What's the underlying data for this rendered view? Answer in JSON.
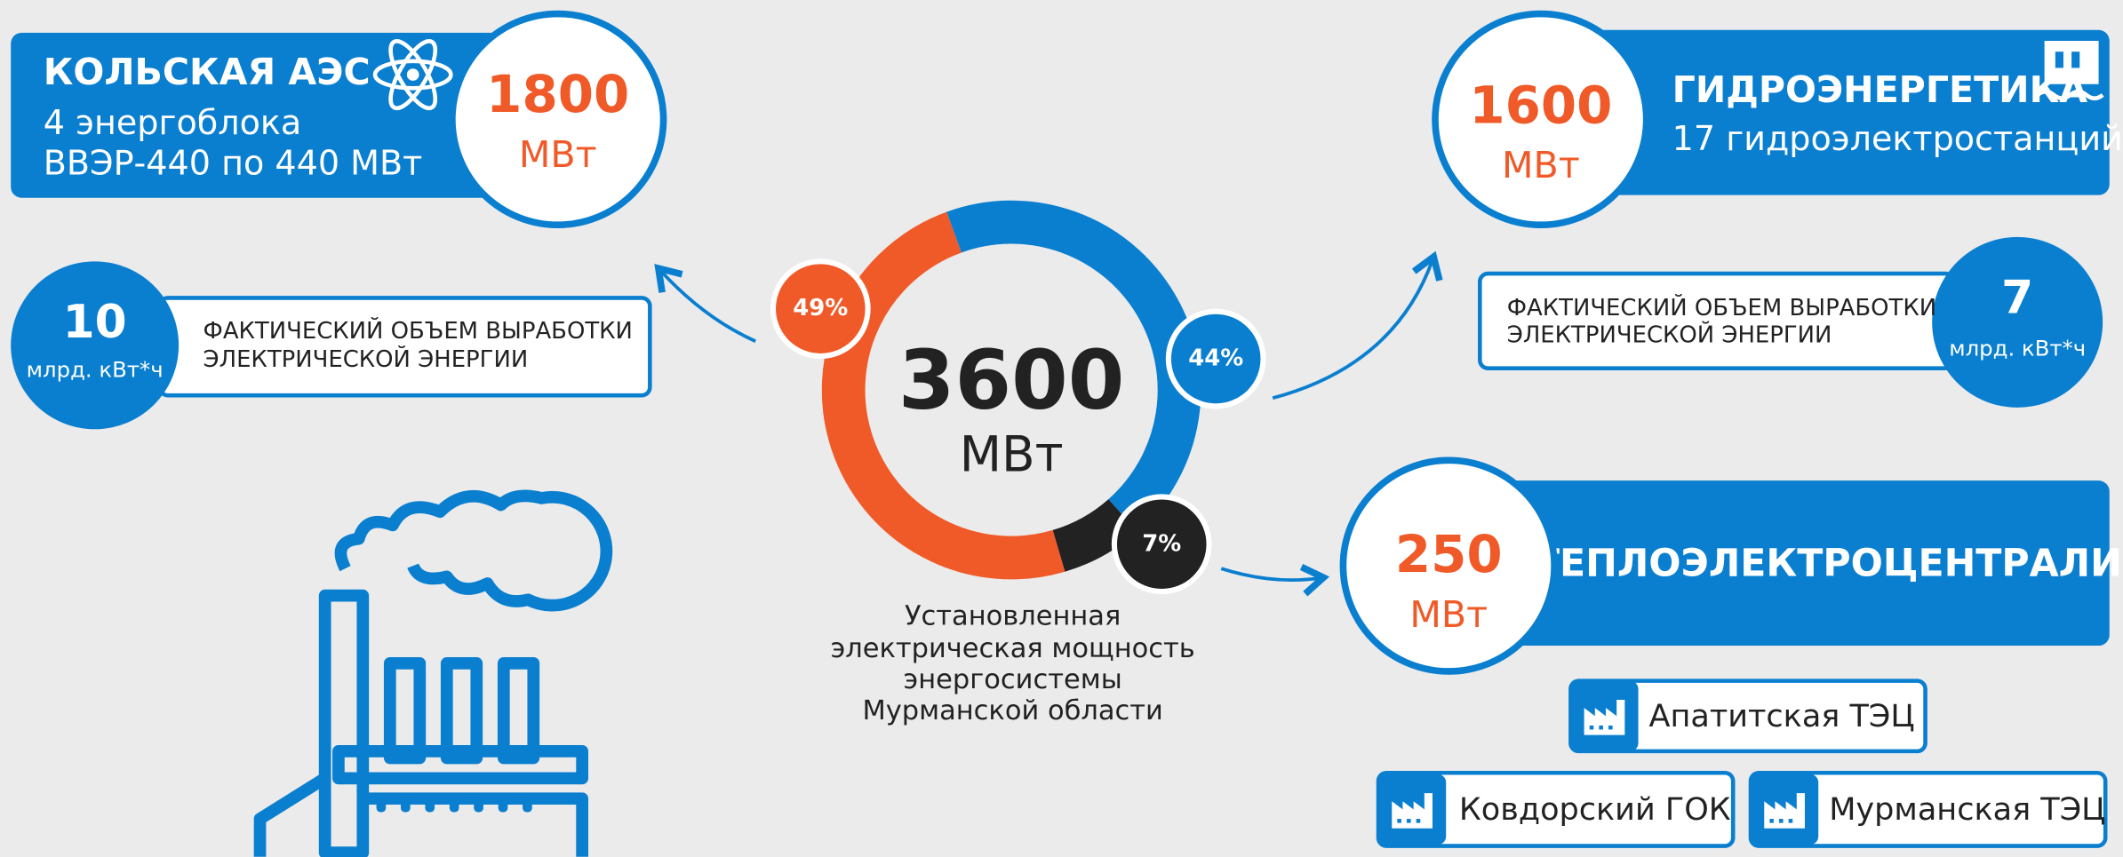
{
  "kola": {
    "title": "КОЛЬСКАЯ АЭС",
    "line1": "4 энергоблока",
    "line2": "ВВЭР-440 по 440 МВт",
    "power": "1800",
    "unit": "МВт",
    "output": {
      "value": "10",
      "unit": "млрд. кВт*ч",
      "line1": "ФАКТИЧЕСКИЙ ОБЪЕМ ВЫРАБОТКИ",
      "line2": "ЭЛЕКТРИЧЕСКОЙ ЭНЕРГИИ"
    }
  },
  "hydro": {
    "title": "ГИДРОЭНЕРГЕТИКА",
    "line1": "17 гидроэлектростанций",
    "power": "1600",
    "unit": "МВт",
    "output": {
      "value": "7",
      "unit": "млрд. кВт*ч",
      "line1": "ФАКТИЧЕСКИЙ ОБЪЕМ ВЫРАБОТКИ",
      "line2": "ЭЛЕКТРИЧЕСКОЙ ЭНЕРГИИ"
    }
  },
  "chp": {
    "title": "ТЕПЛОЭЛЕКТРОЦЕНТРАЛИ",
    "power": "250",
    "unit": "МВт",
    "plants": [
      "Апатитская ТЭЦ",
      "Ковдорский ГОК",
      "Мурманская ТЭЦ"
    ]
  },
  "donut": {
    "total": "3600",
    "unit": "МВт",
    "caption": [
      "Установленная",
      "электрическая  мощность",
      "энергосистемы",
      "Мурманской области"
    ],
    "segments": [
      {
        "value": 44,
        "value_label": "44%",
        "color": "#0a7fd0"
      },
      {
        "value": 7,
        "value_label": "7%",
        "color": "#222222"
      },
      {
        "value": 49,
        "value_label": "49%",
        "color": "#f05a28"
      }
    ]
  }
}
